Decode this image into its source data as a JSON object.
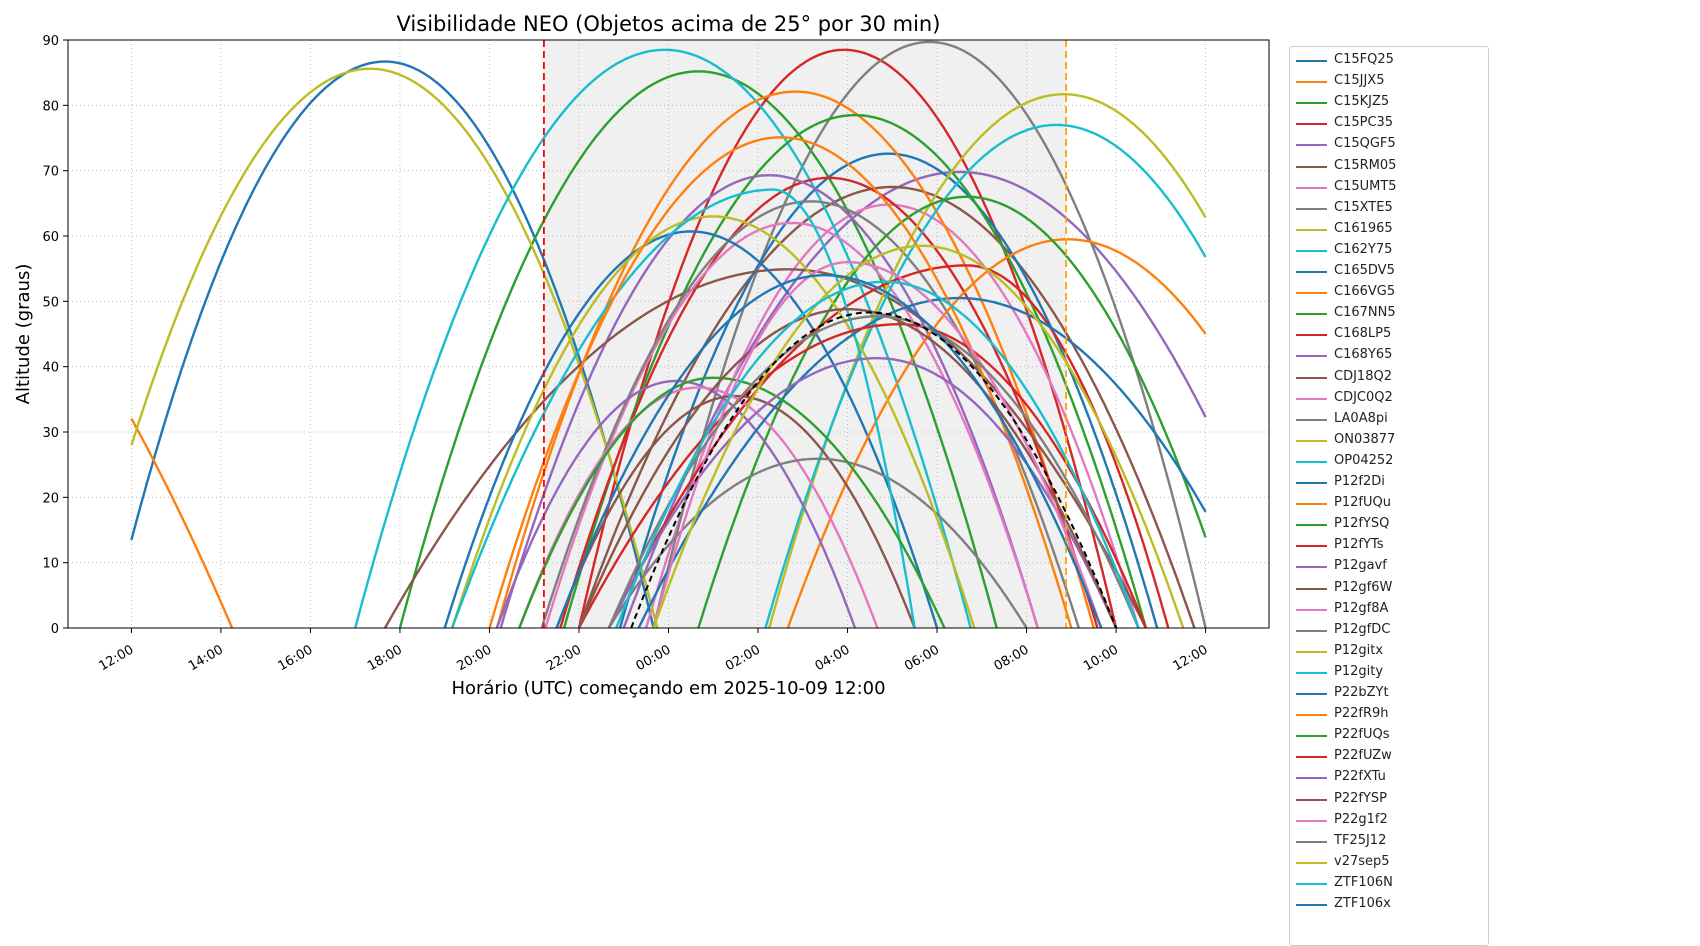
{
  "chart_data": {
    "type": "line",
    "title": "Visibilidade NEO (Objetos acima de 25° por 30 min)",
    "xlabel": "Horário (UTC) começando em 2025-10-09 12:00",
    "ylabel": "Altitude (graus)",
    "xlim": [
      "2025-10-09 10:35",
      "2025-10-10 13:25"
    ],
    "ylim": [
      0,
      90
    ],
    "grid": true,
    "legend_placement": "outside-right",
    "x_ticks": [
      "12:00",
      "14:00",
      "16:00",
      "18:00",
      "20:00",
      "22:00",
      "00:00",
      "02:00",
      "04:00",
      "06:00",
      "08:00",
      "10:00",
      "12:00"
    ],
    "y_ticks": [
      0,
      10,
      20,
      30,
      40,
      50,
      60,
      70,
      80,
      90
    ],
    "night_window": {
      "start": "2025-10-09 21:13",
      "end": "2025-10-10 08:53",
      "fill": "#f0f0f0",
      "start_line_color": "#ff0000",
      "end_line_color": "#ffa500"
    },
    "series": [
      {
        "name": "C15FQ25",
        "color": "#1f77b4",
        "peak_time": "2025-10-09 17:40",
        "peak_alt": 86.7,
        "rise_time": "2025-10-09 11:30",
        "set_time": "2025-10-09 23:40",
        "start_alt": 13,
        "end_alt": 0
      },
      {
        "name": "C15JJX5",
        "color": "#ff7f0e",
        "peak_time": "2025-10-09 04:00",
        "peak_alt": 82,
        "rise_time": "2025-10-08 20:00",
        "set_time": "2025-10-09 14:15",
        "start_alt": 29,
        "end_alt": 0
      },
      {
        "name": "C15KJZ5",
        "color": "#2ca02c",
        "peak_time": "2025-10-10 00:40",
        "peak_alt": 85.2,
        "rise_time": "2025-10-09 18:00",
        "set_time": "2025-10-10 07:20",
        "start_alt": 3,
        "end_alt": 0
      },
      {
        "name": "C15PC35",
        "color": "#d62728",
        "peak_time": "2025-10-10 03:55",
        "peak_alt": 88.5,
        "rise_time": "2025-10-09 22:00",
        "set_time": "2025-10-10 10:00",
        "start_alt": 0,
        "end_alt": 0
      },
      {
        "name": "C15QGF5",
        "color": "#9467bd",
        "peak_time": "2025-10-10 06:30",
        "peak_alt": 69.8,
        "rise_time": "2025-10-09 23:00",
        "set_time": "2025-10-10 14:00",
        "start_alt": 13,
        "end_alt": 14
      },
      {
        "name": "C15RM05",
        "color": "#8c564b",
        "peak_time": "2025-10-10 05:00",
        "peak_alt": 67.5,
        "rise_time": "2025-10-09 22:00",
        "set_time": "2025-10-10 11:45",
        "start_alt": 0,
        "end_alt": 4
      },
      {
        "name": "C15UMT5",
        "color": "#e377c2",
        "peak_time": "2025-10-10 04:55",
        "peak_alt": 64.8,
        "rise_time": "2025-10-09 23:30",
        "set_time": "2025-10-10 10:30",
        "start_alt": 0,
        "end_alt": 0
      },
      {
        "name": "C15XTE5",
        "color": "#7f7f7f",
        "peak_time": "2025-10-10 05:50",
        "peak_alt": 89.7,
        "rise_time": "2025-10-09 23:40",
        "set_time": "2025-10-10 12:00",
        "start_alt": 5,
        "end_alt": 4
      },
      {
        "name": "C161965",
        "color": "#bcbd22",
        "peak_time": "2025-10-09 17:20",
        "peak_alt": 85.6,
        "rise_time": "2025-10-09 10:50",
        "set_time": "2025-10-09 23:45",
        "start_alt": 21,
        "end_alt": 0
      },
      {
        "name": "C162Y75",
        "color": "#17becf",
        "peak_time": "2025-10-09 23:55",
        "peak_alt": 88.5,
        "rise_time": "2025-10-09 17:00",
        "set_time": "2025-10-10 06:45",
        "start_alt": 0,
        "end_alt": 0
      },
      {
        "name": "C165DV5",
        "color": "#1f77b4",
        "peak_time": "2025-10-10 04:55",
        "peak_alt": 72.6,
        "rise_time": "2025-10-09 22:55",
        "set_time": "2025-10-10 10:55",
        "start_alt": 0,
        "end_alt": 0
      },
      {
        "name": "C166VG5",
        "color": "#ff7f0e",
        "peak_time": "2025-10-10 02:50",
        "peak_alt": 82.1,
        "rise_time": "2025-10-09 20:10",
        "set_time": "2025-10-10 09:30",
        "start_alt": 0,
        "end_alt": 0
      },
      {
        "name": "C167NN5",
        "color": "#2ca02c",
        "peak_time": "2025-10-10 04:10",
        "peak_alt": 78.5,
        "rise_time": "2025-10-09 21:40",
        "set_time": "2025-10-10 10:40",
        "start_alt": 0,
        "end_alt": 0
      },
      {
        "name": "C168LP5",
        "color": "#d62728",
        "peak_time": "2025-10-10 03:35",
        "peak_alt": 68.9,
        "rise_time": "2025-10-09 21:35",
        "set_time": "2025-10-10 09:35",
        "start_alt": 0,
        "end_alt": 0
      },
      {
        "name": "C168Y65",
        "color": "#9467bd",
        "peak_time": "2025-10-10 02:15",
        "peak_alt": 69.3,
        "rise_time": "2025-10-09 20:15",
        "set_time": "2025-10-10 08:15",
        "start_alt": 0,
        "end_alt": 0
      },
      {
        "name": "CDJ18Q2",
        "color": "#8c564b",
        "peak_time": "2025-10-10 02:40",
        "peak_alt": 54.9,
        "rise_time": "2025-10-09 17:40",
        "set_time": "2025-10-10 10:40",
        "start_alt": 0,
        "end_alt": 0
      },
      {
        "name": "CDJC0Q2",
        "color": "#e377c2",
        "peak_time": "2025-10-10 02:45",
        "peak_alt": 62,
        "rise_time": "2025-10-09 21:15",
        "set_time": "2025-10-10 08:15",
        "start_alt": 0,
        "end_alt": 0
      },
      {
        "name": "LA0A8pi",
        "color": "#7f7f7f",
        "peak_time": "2025-10-10 03:10",
        "peak_alt": 65.3,
        "rise_time": "2025-10-09 21:10",
        "set_time": "2025-10-10 09:10",
        "start_alt": 0,
        "end_alt": 0
      },
      {
        "name": "ON03877",
        "color": "#bcbd22",
        "peak_time": "2025-10-10 08:50",
        "peak_alt": 81.7,
        "rise_time": "2025-10-10 02:15",
        "set_time": "2025-10-10 15:25",
        "start_alt": 39.5,
        "end_alt": 38.3
      },
      {
        "name": "OP04252",
        "color": "#17becf",
        "peak_time": "2025-10-10 08:40",
        "peak_alt": 77,
        "rise_time": "2025-10-10 02:10",
        "set_time": "2025-10-10 15:10",
        "start_alt": 33.5,
        "end_alt": 32.5
      },
      {
        "name": "P12f2Di",
        "color": "#1f77b4",
        "peak_time": "2025-10-10 00:30",
        "peak_alt": 60.7,
        "rise_time": "2025-10-09 19:00",
        "set_time": "2025-10-10 06:00",
        "start_alt": 0,
        "end_alt": 0
      },
      {
        "name": "P12fUQu",
        "color": "#ff7f0e",
        "peak_time": "2025-10-10 08:55",
        "peak_alt": 59.5,
        "rise_time": "2025-10-10 02:40",
        "set_time": "2025-10-10 15:10",
        "start_alt": 0,
        "end_alt": 28
      },
      {
        "name": "P12fYSQ",
        "color": "#2ca02c",
        "peak_time": "2025-10-10 06:40",
        "peak_alt": 66,
        "rise_time": "2025-10-10 00:40",
        "set_time": "2025-10-10 12:40",
        "start_alt": 0,
        "end_alt": 2
      },
      {
        "name": "P12fYTs",
        "color": "#d62728",
        "peak_time": "2025-10-10 06:40",
        "peak_alt": 55.5,
        "rise_time": "2025-10-09 22:40",
        "set_time": "2025-10-10 11:10",
        "start_alt": 0,
        "end_alt": 0
      },
      {
        "name": "P12gavf",
        "color": "#9467bd",
        "peak_time": "2025-10-10 00:10",
        "peak_alt": 37.8,
        "rise_time": "2025-10-09 20:10",
        "set_time": "2025-10-10 04:10",
        "start_alt": 0,
        "end_alt": 0
      },
      {
        "name": "P12gf6W",
        "color": "#8c564b",
        "peak_time": "2025-10-10 01:30",
        "peak_alt": 35.5,
        "rise_time": "2025-10-09 21:30",
        "set_time": "2025-10-10 05:30",
        "start_alt": 0,
        "end_alt": 0
      },
      {
        "name": "P12gf8A",
        "color": "#e377c2",
        "peak_time": "2025-10-10 00:40",
        "peak_alt": 36.8,
        "rise_time": "2025-10-09 20:40",
        "set_time": "2025-10-10 04:40",
        "start_alt": 0,
        "end_alt": 0
      },
      {
        "name": "P12gfDC",
        "color": "#7f7f7f",
        "peak_time": "2025-10-10 03:20",
        "peak_alt": 25.9,
        "rise_time": "2025-10-09 22:40",
        "set_time": "2025-10-10 08:00",
        "start_alt": 0,
        "end_alt": 0
      },
      {
        "name": "P12gitx",
        "color": "#bcbd22",
        "peak_time": "2025-10-10 01:00",
        "peak_alt": 63,
        "rise_time": "2025-10-09 19:10",
        "set_time": "2025-10-10 06:50",
        "start_alt": 0,
        "end_alt": 0
      },
      {
        "name": "P12gity",
        "color": "#17becf",
        "peak_time": "2025-10-10 02:20",
        "peak_alt": 67.1,
        "rise_time": "2025-10-09 19:10",
        "set_time": "2025-10-10 05:30",
        "start_alt": 0,
        "end_alt": 0
      },
      {
        "name": "P22bZYt",
        "color": "#1f77b4",
        "peak_time": "2025-10-10 06:30",
        "peak_alt": 50.5,
        "rise_time": "2025-10-09 23:20",
        "set_time": "2025-10-10 13:20",
        "start_alt": 0,
        "end_alt": 12
      },
      {
        "name": "P22fR9h",
        "color": "#ff7f0e",
        "peak_time": "2025-10-10 02:30",
        "peak_alt": 75.1,
        "rise_time": "2025-10-09 20:00",
        "set_time": "2025-10-10 09:00",
        "start_alt": 0,
        "end_alt": 0
      },
      {
        "name": "P22fUQs",
        "color": "#2ca02c",
        "peak_time": "2025-10-10 01:00",
        "peak_alt": 38.3,
        "rise_time": "2025-10-09 20:40",
        "set_time": "2025-10-10 06:10",
        "start_alt": 0,
        "end_alt": 0
      },
      {
        "name": "P22fUZw",
        "color": "#d62728",
        "peak_time": "2025-10-10 05:10",
        "peak_alt": 46.5,
        "rise_time": "2025-10-09 22:00",
        "set_time": "2025-10-10 10:40",
        "start_alt": 0,
        "end_alt": 0
      },
      {
        "name": "P22fXTu",
        "color": "#9467bd",
        "peak_time": "2025-10-10 04:40",
        "peak_alt": 41.3,
        "rise_time": "2025-10-09 22:40",
        "set_time": "2025-10-10 10:00",
        "start_alt": 0,
        "end_alt": 0
      },
      {
        "name": "P22fYSP",
        "color": "#8c564b",
        "peak_time": "2025-10-10 04:00",
        "peak_alt": 48.8,
        "rise_time": "2025-10-09 22:00",
        "set_time": "2025-10-10 10:00",
        "start_alt": 0,
        "end_alt": 0
      },
      {
        "name": "P22g1f2",
        "color": "#e377c2",
        "peak_time": "2025-10-10 04:00",
        "peak_alt": 56,
        "rise_time": "2025-10-09 23:40",
        "set_time": "2025-10-10 09:40",
        "start_alt": 0,
        "end_alt": 0
      },
      {
        "name": "TF25J12",
        "color": "#7f7f7f",
        "peak_time": "2025-10-10 04:40",
        "peak_alt": 47.7,
        "rise_time": "2025-10-09 22:40",
        "set_time": "2025-10-10 10:30",
        "start_alt": 0,
        "end_alt": 0
      },
      {
        "name": "v27sep5",
        "color": "#bcbd22",
        "peak_time": "2025-10-10 05:40",
        "peak_alt": 58.5,
        "rise_time": "2025-10-09 23:40",
        "set_time": "2025-10-10 11:30",
        "start_alt": 0,
        "end_alt": 0
      },
      {
        "name": "ZTF106N",
        "color": "#17becf",
        "peak_time": "2025-10-10 04:50",
        "peak_alt": 53,
        "rise_time": "2025-10-09 22:50",
        "set_time": "2025-10-10 10:30",
        "start_alt": 0,
        "end_alt": 0
      },
      {
        "name": "ZTF106x",
        "color": "#1f77b4",
        "peak_time": "2025-10-10 03:30",
        "peak_alt": 54,
        "rise_time": "2025-10-09 21:30",
        "set_time": "2025-10-10 09:40",
        "start_alt": 0,
        "end_alt": 0
      },
      {
        "name": "",
        "color": "#000000",
        "dashed": true,
        "peak_time": "2025-10-10 04:30",
        "peak_alt": 48.3,
        "rise_time": "2025-10-09 23:10",
        "set_time": "2025-10-10 10:00",
        "start_alt": 0,
        "end_alt": 0
      }
    ]
  }
}
